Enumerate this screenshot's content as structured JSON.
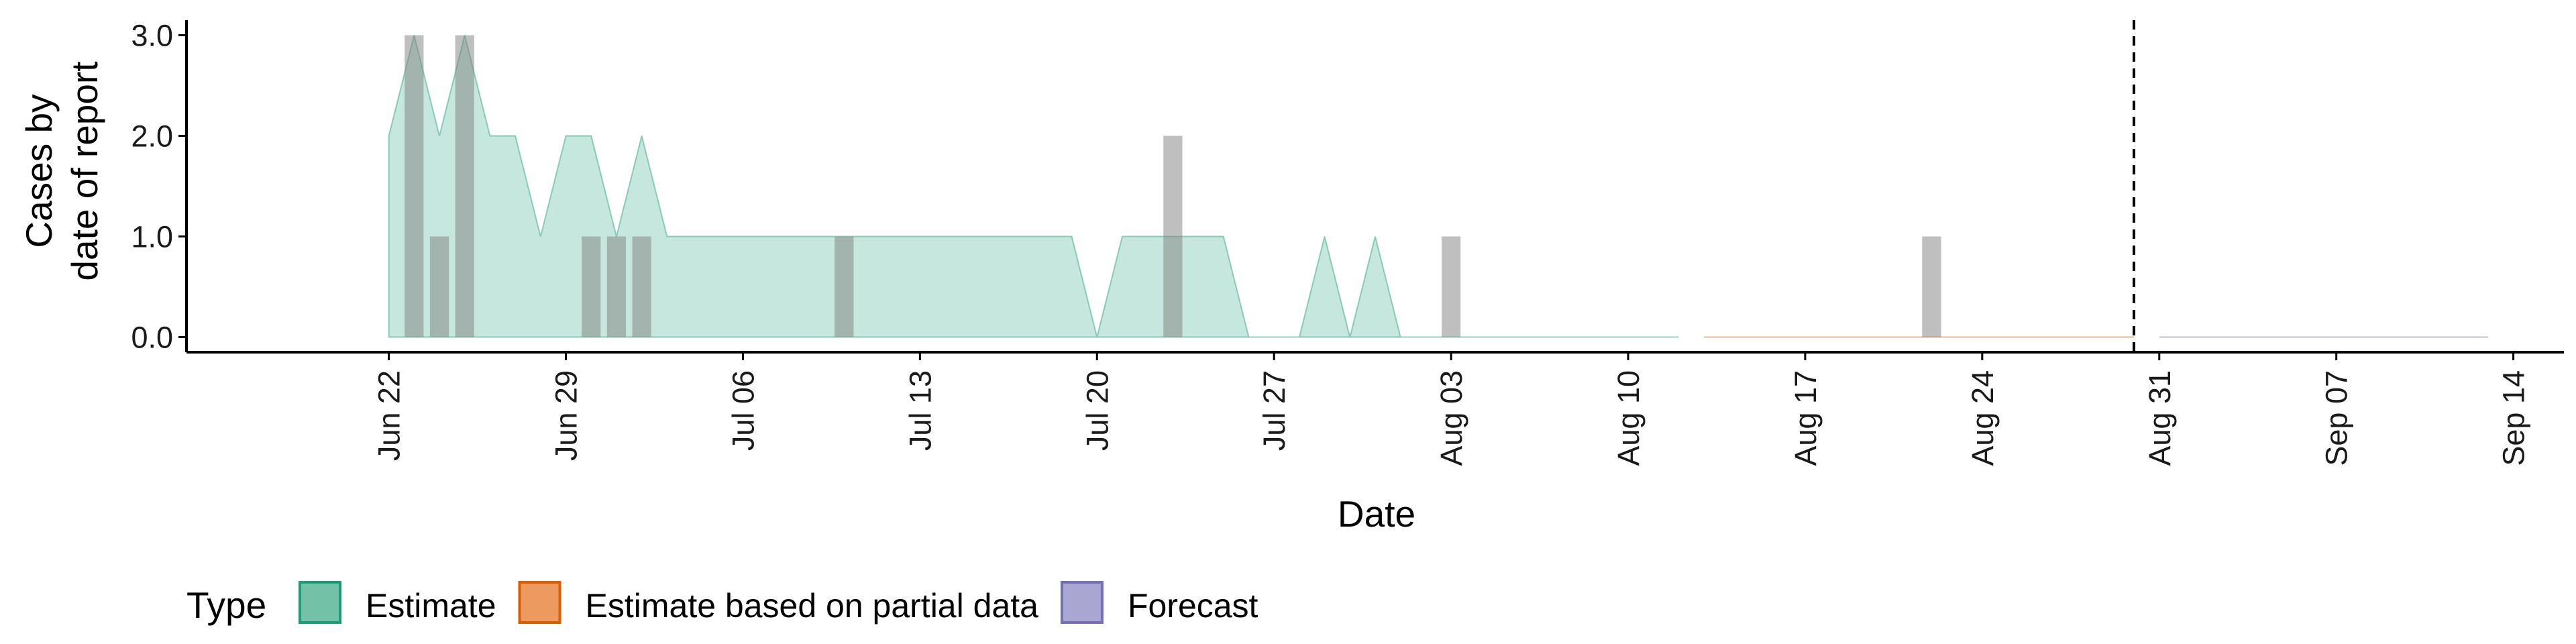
{
  "chart_data": {
    "type": "area",
    "ylabel_line1": "Cases by",
    "ylabel_line2": "date of report",
    "xlabel": "Date",
    "ylim": [
      -0.15,
      3.15
    ],
    "xlim": [
      "2022-06-14",
      "2022-09-16"
    ],
    "y_ticks": [
      0,
      1,
      2,
      3
    ],
    "y_tick_labels": [
      "0.0",
      "1.0",
      "2.0",
      "3.0"
    ],
    "x_ticks": [
      "2022-06-22",
      "2022-06-29",
      "2022-07-06",
      "2022-07-13",
      "2022-07-20",
      "2022-07-27",
      "2022-08-03",
      "2022-08-10",
      "2022-08-17",
      "2022-08-24",
      "2022-08-31",
      "2022-09-07",
      "2022-09-14"
    ],
    "x_tick_labels": [
      "Jun 22",
      "Jun 29",
      "Jul 06",
      "Jul 13",
      "Jul 20",
      "Jul 27",
      "Aug 03",
      "Aug 10",
      "Aug 17",
      "Aug 24",
      "Aug 31",
      "Sep 07",
      "Sep 14"
    ],
    "reference_line_date": "2022-08-30",
    "grid": false,
    "legend_position": "bottom",
    "legend_title": "Type",
    "series": [
      {
        "name": "Estimate",
        "color": "#1b9e77",
        "upper": [
          [
            "2022-06-22",
            2
          ],
          [
            "2022-06-23",
            3
          ],
          [
            "2022-06-24",
            2
          ],
          [
            "2022-06-25",
            3
          ],
          [
            "2022-06-26",
            2
          ],
          [
            "2022-06-27",
            2
          ],
          [
            "2022-06-28",
            1
          ],
          [
            "2022-06-29",
            2
          ],
          [
            "2022-06-30",
            2
          ],
          [
            "2022-07-01",
            1
          ],
          [
            "2022-07-02",
            2
          ],
          [
            "2022-07-03",
            1
          ],
          [
            "2022-07-19",
            1
          ],
          [
            "2022-07-20",
            0
          ],
          [
            "2022-07-21",
            1
          ],
          [
            "2022-07-25",
            1
          ],
          [
            "2022-07-26",
            0
          ],
          [
            "2022-07-28",
            0
          ],
          [
            "2022-07-29",
            1
          ],
          [
            "2022-07-30",
            0
          ],
          [
            "2022-07-31",
            1
          ],
          [
            "2022-08-01",
            0
          ],
          [
            "2022-08-12",
            0
          ]
        ],
        "lower": [
          [
            "2022-06-22",
            0
          ],
          [
            "2022-08-12",
            0
          ]
        ]
      },
      {
        "name": "Estimate based on partial data",
        "color": "#d95f02",
        "upper": [
          [
            "2022-08-13",
            0
          ],
          [
            "2022-08-30",
            0
          ]
        ],
        "lower": [
          [
            "2022-08-13",
            0
          ],
          [
            "2022-08-30",
            0
          ]
        ]
      },
      {
        "name": "Forecast",
        "color": "#7570b3",
        "upper": [
          [
            "2022-08-31",
            0
          ],
          [
            "2022-09-13",
            0
          ]
        ],
        "lower": [
          [
            "2022-08-31",
            0
          ],
          [
            "2022-09-13",
            0
          ]
        ]
      }
    ],
    "reported_cases": [
      [
        "2022-06-23",
        3
      ],
      [
        "2022-06-24",
        1
      ],
      [
        "2022-06-25",
        3
      ],
      [
        "2022-06-30",
        1
      ],
      [
        "2022-07-01",
        1
      ],
      [
        "2022-07-02",
        1
      ],
      [
        "2022-07-10",
        1
      ],
      [
        "2022-07-23",
        2
      ],
      [
        "2022-08-03",
        1
      ],
      [
        "2022-08-22",
        1
      ]
    ]
  }
}
